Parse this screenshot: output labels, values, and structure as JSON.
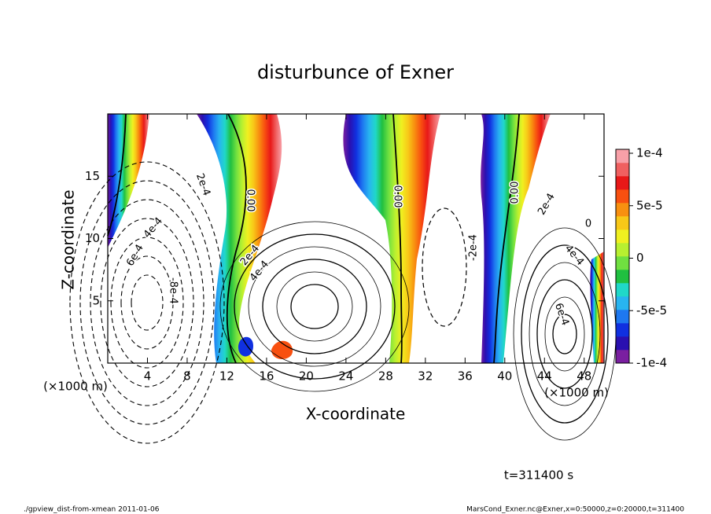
{
  "chart_data": {
    "type": "contour",
    "title": "disturbunce of Exner",
    "xlabel": "X-coordinate",
    "ylabel": "Z-coordinate",
    "xunit": "(×1000 m)",
    "yunit": "(×1000 m)",
    "xlim": [
      0,
      50
    ],
    "ylim": [
      0,
      20
    ],
    "xticks": [
      4,
      8,
      12,
      16,
      20,
      24,
      28,
      32,
      36,
      40,
      44,
      48
    ],
    "yticks": [
      5,
      10,
      15
    ],
    "colorbar": {
      "lim": [
        -0.0001,
        0.0001
      ],
      "ticks": [
        {
          "value": 0.0001,
          "label": "1e-4"
        },
        {
          "value": 5e-05,
          "label": "5e-5"
        },
        0,
        {
          "value": -5e-05,
          "label": "-5e-5"
        },
        {
          "value": -0.0001,
          "label": "-1e-4"
        }
      ],
      "colors": [
        "#7a1fa0",
        "#2a10b0",
        "#1030e0",
        "#1e78f0",
        "#28b4f0",
        "#20d8c8",
        "#20c040",
        "#70e040",
        "#b8f030",
        "#f0f020",
        "#f8c818",
        "#f89010",
        "#f85010",
        "#e81818",
        "#f06060",
        "#f8a0a8"
      ]
    },
    "contour_labels": [
      "2e-4",
      "6e-4",
      "4e-4",
      "-8e-4",
      "0.00",
      "2e-4",
      "4e-4",
      "0.00",
      "-2e-4",
      "0.00",
      "2e-4",
      "0",
      "4e-4",
      "6e-4"
    ],
    "time_label": "t=311400 s",
    "footer_left": "./gpview_dist-from-xmean  2011-01-06",
    "footer_right": "MarsCond_Exner.nc@Exner,x=0:50000,z=0:20000,t=311400"
  }
}
